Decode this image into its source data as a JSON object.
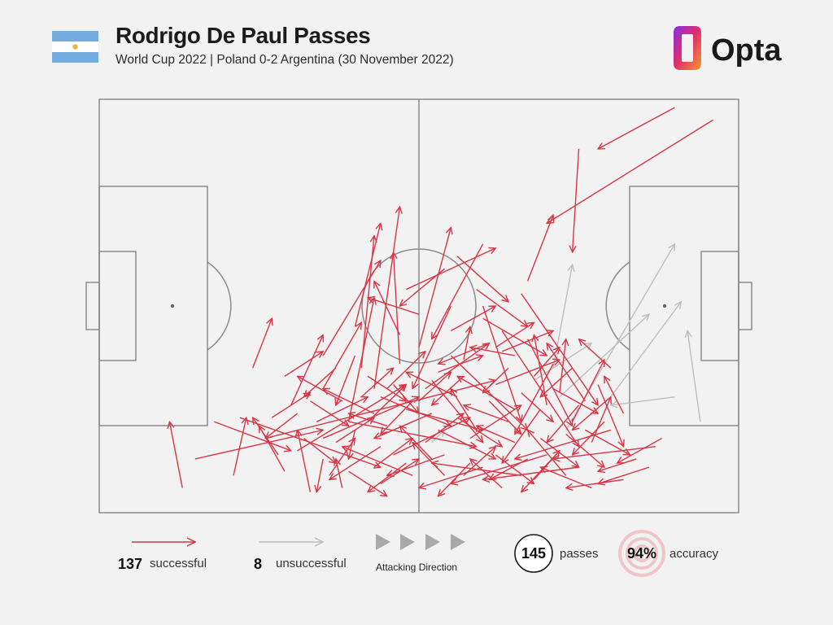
{
  "header": {
    "title": "Rodrigo De Paul Passes",
    "subtitle": "World Cup 2022 | Poland 0-2 Argentina (30 November 2022)",
    "brand": "Opta"
  },
  "colors": {
    "successful": "#d83545",
    "unsuccessful": "#bdbdbd",
    "pitch_lines": "#8a8a8a",
    "flag_blue": "#74acdf",
    "flag_sun": "#e9b83a"
  },
  "legend": {
    "successful_count": "137",
    "successful_label": "successful",
    "unsuccessful_count": "8",
    "unsuccessful_label": "unsuccessful",
    "direction_label": "Attacking Direction",
    "passes_count": "145",
    "passes_label": "passes",
    "accuracy_value": "94%",
    "accuracy_label": "accuracy"
  },
  "chart_data": {
    "type": "pass-map",
    "pitch": {
      "length": 100,
      "width": 100,
      "attacking_direction": "left-to-right"
    },
    "successful": [
      [
        96,
        95,
        70,
        70
      ],
      [
        90,
        98,
        78,
        88
      ],
      [
        75,
        88,
        74,
        63
      ],
      [
        67,
        56,
        71,
        72
      ],
      [
        65,
        38,
        58,
        40
      ],
      [
        66,
        53,
        78,
        26
      ],
      [
        63,
        44,
        75,
        16
      ],
      [
        60,
        50,
        66,
        22
      ],
      [
        61,
        41,
        53,
        36
      ],
      [
        55,
        38,
        67,
        20
      ],
      [
        52,
        32,
        60,
        17
      ],
      [
        48,
        25,
        60,
        20
      ],
      [
        44,
        28,
        55,
        21
      ],
      [
        39,
        22,
        59,
        16
      ],
      [
        35,
        18,
        50,
        28
      ],
      [
        31,
        15,
        48,
        31
      ],
      [
        26,
        18,
        62,
        32
      ],
      [
        22,
        23,
        44,
        11
      ],
      [
        18,
        22,
        30,
        15
      ],
      [
        15,
        13,
        35,
        20
      ],
      [
        13,
        6,
        11,
        22
      ],
      [
        21,
        9,
        23,
        23
      ],
      [
        29,
        10,
        25,
        21
      ],
      [
        30,
        26,
        35,
        43
      ],
      [
        35,
        30,
        41,
        46
      ],
      [
        39,
        22,
        43,
        52
      ],
      [
        35,
        38,
        44,
        61
      ],
      [
        40,
        45,
        44,
        70
      ],
      [
        41,
        35,
        43,
        67
      ],
      [
        43,
        30,
        47,
        74
      ],
      [
        47,
        36,
        46,
        63
      ],
      [
        50,
        40,
        55,
        69
      ],
      [
        48,
        54,
        62,
        64
      ],
      [
        55,
        50,
        49,
        30
      ],
      [
        60,
        65,
        52,
        42
      ],
      [
        54,
        59,
        47,
        50
      ],
      [
        56,
        62,
        64,
        51
      ],
      [
        59,
        54,
        67,
        45
      ],
      [
        62,
        40,
        68,
        46
      ],
      [
        63,
        39,
        71,
        44
      ],
      [
        70,
        26,
        68,
        43
      ],
      [
        72,
        29,
        73,
        42
      ],
      [
        74,
        22,
        79,
        37
      ],
      [
        77,
        17,
        80,
        28
      ],
      [
        80,
        35,
        75,
        42
      ],
      [
        82,
        24,
        79,
        33
      ],
      [
        87,
        16,
        71,
        13
      ],
      [
        86,
        11,
        78,
        7
      ],
      [
        80,
        20,
        65,
        13
      ],
      [
        75,
        11,
        60,
        8
      ],
      [
        70,
        14,
        55,
        7
      ],
      [
        66,
        9,
        52,
        12
      ],
      [
        60,
        11,
        50,
        6
      ],
      [
        54,
        14,
        45,
        9
      ],
      [
        49,
        9,
        38,
        16
      ],
      [
        44,
        16,
        36,
        8
      ],
      [
        40,
        20,
        39,
        13
      ],
      [
        35,
        13,
        34,
        5
      ],
      [
        38,
        6,
        37,
        13
      ],
      [
        33,
        5,
        31,
        20
      ],
      [
        28,
        14,
        24,
        23
      ],
      [
        51,
        30,
        61,
        41
      ],
      [
        57,
        37,
        58,
        45
      ],
      [
        68,
        33,
        72,
        40
      ],
      [
        76,
        27,
        70,
        41
      ],
      [
        69,
        18,
        75,
        11
      ],
      [
        73,
        9,
        67,
        20
      ],
      [
        64,
        22,
        57,
        26
      ],
      [
        52,
        24,
        43,
        18
      ],
      [
        46,
        14,
        58,
        23
      ],
      [
        42,
        22,
        48,
        31
      ],
      [
        56,
        28,
        48,
        34
      ],
      [
        62,
        31,
        72,
        37
      ],
      [
        65,
        25,
        56,
        33
      ],
      [
        58,
        18,
        66,
        26
      ],
      [
        53,
        20,
        62,
        13
      ],
      [
        49,
        27,
        44,
        19
      ],
      [
        45,
        30,
        51,
        39
      ],
      [
        43,
        24,
        35,
        30
      ],
      [
        38,
        27,
        31,
        33
      ],
      [
        34,
        22,
        42,
        28
      ],
      [
        29,
        33,
        35,
        39
      ],
      [
        24,
        35,
        27,
        47
      ],
      [
        27,
        23,
        33,
        29
      ],
      [
        47,
        43,
        43,
        56
      ],
      [
        50,
        48,
        42,
        52
      ],
      [
        55,
        44,
        62,
        50
      ],
      [
        60,
        47,
        70,
        38
      ],
      [
        67,
        42,
        74,
        21
      ],
      [
        71,
        36,
        65,
        19
      ],
      [
        78,
        31,
        82,
        16
      ],
      [
        79,
        22,
        74,
        14
      ],
      [
        84,
        13,
        78,
        10
      ],
      [
        88,
        18,
        81,
        12
      ],
      [
        82,
        8,
        73,
        6
      ],
      [
        77,
        6,
        69,
        11
      ],
      [
        72,
        15,
        66,
        5
      ],
      [
        67,
        13,
        61,
        8
      ],
      [
        63,
        6,
        58,
        13
      ],
      [
        58,
        12,
        53,
        4
      ],
      [
        48,
        12,
        42,
        5
      ],
      [
        44,
        7,
        50,
        13
      ],
      [
        39,
        10,
        45,
        4
      ],
      [
        36,
        9,
        40,
        18
      ],
      [
        33,
        27,
        39,
        21
      ],
      [
        37,
        35,
        32,
        28
      ],
      [
        40,
        38,
        37,
        26
      ],
      [
        42,
        33,
        48,
        27
      ],
      [
        45,
        21,
        39,
        24
      ],
      [
        51,
        17,
        57,
        24
      ],
      [
        54,
        9,
        49,
        17
      ],
      [
        56,
        23,
        63,
        16
      ],
      [
        61,
        27,
        66,
        19
      ],
      [
        64,
        35,
        60,
        29
      ],
      [
        66,
        29,
        71,
        22
      ],
      [
        69,
        25,
        63,
        12
      ],
      [
        71,
        30,
        78,
        24
      ],
      [
        74,
        35,
        69,
        28
      ],
      [
        76,
        20,
        83,
        14
      ],
      [
        75,
        26,
        70,
        17
      ],
      [
        80,
        28,
        74,
        20
      ],
      [
        73,
        19,
        79,
        11
      ],
      [
        68,
        8,
        72,
        15
      ],
      [
        65,
        17,
        59,
        21
      ],
      [
        59,
        20,
        55,
        30
      ],
      [
        57,
        33,
        52,
        26
      ],
      [
        53,
        34,
        60,
        38
      ],
      [
        50,
        27,
        55,
        34
      ],
      [
        46,
        31,
        50,
        24
      ],
      [
        41,
        28,
        46,
        35
      ],
      [
        37,
        17,
        43,
        23
      ],
      [
        32,
        18,
        37,
        12
      ],
      [
        31,
        24,
        26,
        18
      ],
      [
        43,
        11,
        49,
        18
      ],
      [
        52,
        13,
        47,
        21
      ],
      [
        57,
        9,
        62,
        16
      ],
      [
        62,
        14,
        68,
        7
      ]
    ],
    "unsuccessful": [
      [
        73,
        20,
        90,
        65
      ],
      [
        72,
        28,
        86,
        48
      ],
      [
        80,
        28,
        91,
        51
      ],
      [
        68,
        32,
        77,
        41
      ],
      [
        71,
        35,
        74,
        60
      ],
      [
        94,
        22,
        92,
        44
      ],
      [
        90,
        28,
        80,
        26
      ],
      [
        52,
        17,
        54,
        20
      ]
    ]
  }
}
